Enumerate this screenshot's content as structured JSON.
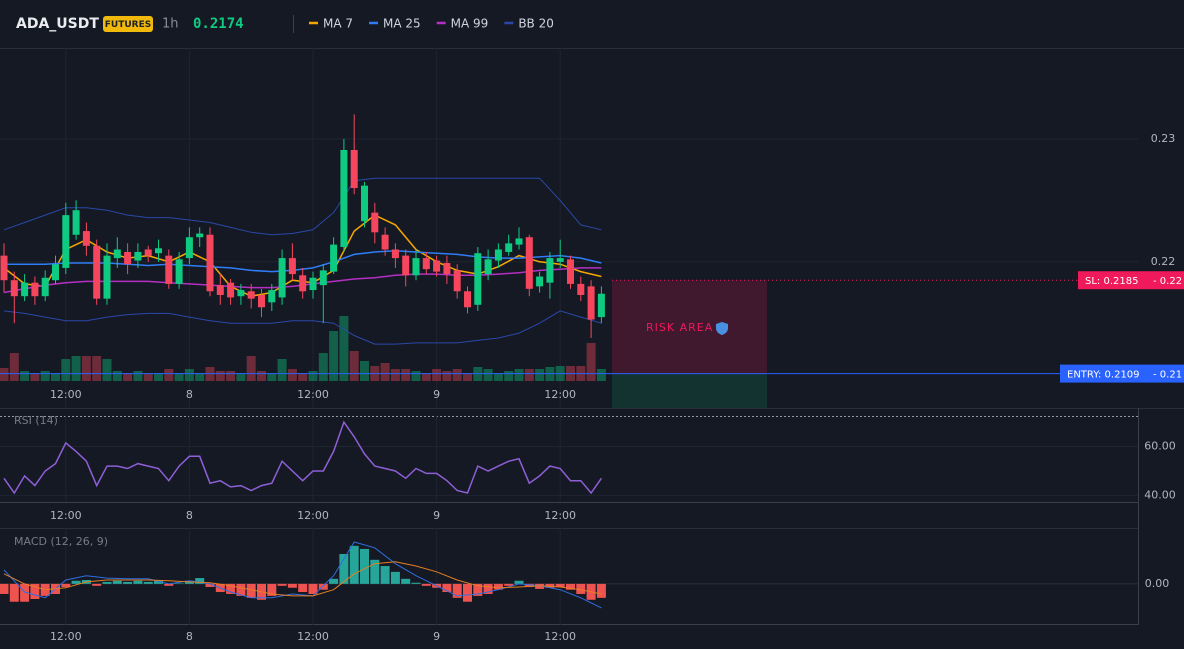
{
  "chart_data": [
    {
      "type": "candlestick",
      "symbol": "ADA_USDT",
      "badge": "FUTURES",
      "interval": "1h",
      "last_price": 0.2174,
      "up_color": "#0ecb81",
      "down_color": "#f6465d",
      "ylim": [
        0.2081,
        0.2374
      ],
      "yticks": [
        0.22,
        0.23
      ],
      "xticks": [
        {
          "value": 6,
          "label": "12:00"
        },
        {
          "value": 18,
          "label": "8"
        },
        {
          "value": 30,
          "label": "12:00"
        },
        {
          "value": 42,
          "label": "9"
        },
        {
          "value": 54,
          "label": "12:00"
        }
      ],
      "open": [
        0.2205,
        0.2185,
        0.2172,
        0.2183,
        0.2172,
        0.2185,
        0.2195,
        0.2222,
        0.2225,
        0.2213,
        0.217,
        0.2203,
        0.2208,
        0.2201,
        0.221,
        0.2207,
        0.2205,
        0.2182,
        0.2203,
        0.222,
        0.2222,
        0.2181,
        0.2183,
        0.2172,
        0.2176,
        0.2173,
        0.2167,
        0.2171,
        0.2203,
        0.2189,
        0.2177,
        0.2181,
        0.2192,
        0.2212,
        0.2291,
        0.2233,
        0.224,
        0.2222,
        0.221,
        0.2205,
        0.2189,
        0.2203,
        0.2201,
        0.2199,
        0.2193,
        0.2176,
        0.2165,
        0.219,
        0.2201,
        0.2208,
        0.2214,
        0.222,
        0.218,
        0.2183,
        0.22,
        0.2202,
        0.2182,
        0.218,
        0.2155
      ],
      "high": [
        0.2215,
        0.2192,
        0.219,
        0.2188,
        0.2193,
        0.2205,
        0.2248,
        0.225,
        0.2232,
        0.2218,
        0.2215,
        0.222,
        0.2215,
        0.2215,
        0.2213,
        0.2218,
        0.221,
        0.2208,
        0.2228,
        0.2228,
        0.2228,
        0.219,
        0.2186,
        0.2182,
        0.2182,
        0.2178,
        0.2182,
        0.221,
        0.2215,
        0.2195,
        0.2192,
        0.2198,
        0.222,
        0.23,
        0.232,
        0.2265,
        0.2248,
        0.2228,
        0.2215,
        0.221,
        0.221,
        0.2208,
        0.2205,
        0.2205,
        0.2198,
        0.218,
        0.2212,
        0.221,
        0.2215,
        0.2222,
        0.2228,
        0.2222,
        0.2192,
        0.2208,
        0.2218,
        0.2205,
        0.2188,
        0.2185,
        0.218
      ],
      "low": [
        0.2175,
        0.215,
        0.2168,
        0.2165,
        0.2168,
        0.2182,
        0.219,
        0.2218,
        0.2205,
        0.2165,
        0.2165,
        0.2195,
        0.219,
        0.2195,
        0.22,
        0.22,
        0.2178,
        0.2178,
        0.2198,
        0.2212,
        0.2172,
        0.2165,
        0.2165,
        0.2165,
        0.2162,
        0.2155,
        0.216,
        0.2165,
        0.2185,
        0.217,
        0.217,
        0.215,
        0.219,
        0.2208,
        0.2255,
        0.2228,
        0.2215,
        0.2205,
        0.2195,
        0.218,
        0.2185,
        0.219,
        0.2188,
        0.2182,
        0.217,
        0.2158,
        0.216,
        0.2185,
        0.2195,
        0.2205,
        0.221,
        0.2172,
        0.2175,
        0.217,
        0.2195,
        0.2178,
        0.2168,
        0.2138,
        0.215
      ],
      "close": [
        0.2185,
        0.2172,
        0.2183,
        0.2172,
        0.2187,
        0.2198,
        0.2238,
        0.2242,
        0.2213,
        0.217,
        0.2205,
        0.221,
        0.2198,
        0.2208,
        0.2205,
        0.2211,
        0.2182,
        0.2202,
        0.222,
        0.2223,
        0.2176,
        0.2173,
        0.2171,
        0.2177,
        0.217,
        0.2163,
        0.2177,
        0.2203,
        0.219,
        0.2176,
        0.2187,
        0.2193,
        0.2214,
        0.2291,
        0.226,
        0.2262,
        0.2224,
        0.221,
        0.2203,
        0.2189,
        0.2203,
        0.2194,
        0.2192,
        0.219,
        0.2176,
        0.2163,
        0.2207,
        0.2202,
        0.221,
        0.2215,
        0.2219,
        0.2178,
        0.2188,
        0.2203,
        0.2203,
        0.2182,
        0.2173,
        0.2153,
        0.2174
      ],
      "volume": [
        13000,
        28000,
        10000,
        8000,
        10000,
        8000,
        22000,
        25000,
        25000,
        25000,
        22000,
        10000,
        8000,
        10000,
        8000,
        8000,
        12000,
        8000,
        12000,
        8000,
        14000,
        10000,
        10000,
        8000,
        25000,
        10000,
        8000,
        22000,
        12000,
        8000,
        10000,
        28000,
        50000,
        65000,
        30000,
        20000,
        15000,
        18000,
        12000,
        12000,
        10000,
        8000,
        12000,
        10000,
        12000,
        8000,
        14000,
        12000,
        8000,
        10000,
        12000,
        12000,
        12000,
        14000,
        15000,
        15000,
        15000,
        38000,
        12000
      ],
      "line_x": [
        0,
        2,
        4,
        6,
        8,
        10,
        12,
        14,
        16,
        18,
        20,
        22,
        24,
        26,
        28,
        30,
        32,
        34,
        36,
        38,
        40,
        42,
        44,
        46,
        48,
        50,
        52,
        54,
        56,
        58
      ],
      "series": [
        {
          "name": "MA 7",
          "color": "#f7a600",
          "values": [
            0.2195,
            0.2182,
            0.218,
            0.221,
            0.2218,
            0.2208,
            0.2203,
            0.2205,
            0.22,
            0.2208,
            0.22,
            0.218,
            0.2172,
            0.2175,
            0.2185,
            0.2183,
            0.2193,
            0.2225,
            0.2238,
            0.223,
            0.221,
            0.22,
            0.2193,
            0.219,
            0.2196,
            0.2205,
            0.22,
            0.2198,
            0.2192,
            0.2188
          ]
        },
        {
          "name": "MA 25",
          "color": "#2f7df6",
          "values": [
            0.2198,
            0.2198,
            0.2198,
            0.2199,
            0.2199,
            0.2199,
            0.2198,
            0.2197,
            0.2198,
            0.2197,
            0.2196,
            0.2195,
            0.2193,
            0.2192,
            0.2193,
            0.2195,
            0.22,
            0.2206,
            0.2208,
            0.2209,
            0.2208,
            0.2207,
            0.2206,
            0.2204,
            0.2203,
            0.2203,
            0.2204,
            0.2205,
            0.2203,
            0.2199
          ]
        },
        {
          "name": "MA 99",
          "color": "#b62fc4",
          "values": [
            0.2175,
            0.2178,
            0.2181,
            0.2183,
            0.2184,
            0.2184,
            0.2184,
            0.2184,
            0.2183,
            0.2182,
            0.2181,
            0.218,
            0.2179,
            0.2179,
            0.218,
            0.2182,
            0.2184,
            0.2186,
            0.2187,
            0.2189,
            0.219,
            0.219,
            0.2189,
            0.2189,
            0.219,
            0.2191,
            0.2193,
            0.2194,
            0.2195,
            0.2195
          ]
        },
        {
          "name": "BB 20",
          "color": "#2a48a8",
          "upper": [
            0.2226,
            0.2232,
            0.2238,
            0.2244,
            0.2244,
            0.2242,
            0.2238,
            0.2236,
            0.2236,
            0.2234,
            0.2232,
            0.2228,
            0.2224,
            0.2222,
            0.2223,
            0.2226,
            0.224,
            0.2266,
            0.2268,
            0.2268,
            0.2268,
            0.2268,
            0.2268,
            0.2268,
            0.2268,
            0.2268,
            0.2268,
            0.225,
            0.223,
            0.2226
          ],
          "lower": [
            0.216,
            0.2158,
            0.2155,
            0.2152,
            0.2152,
            0.2155,
            0.2157,
            0.2158,
            0.2158,
            0.2155,
            0.2152,
            0.215,
            0.215,
            0.215,
            0.2152,
            0.2152,
            0.215,
            0.214,
            0.2133,
            0.2133,
            0.2134,
            0.2134,
            0.2134,
            0.2136,
            0.2138,
            0.2142,
            0.215,
            0.216,
            0.2155,
            0.215
          ]
        }
      ],
      "stop_loss": {
        "value": 0.2185,
        "label": "SL: 0.2185",
        "scale_label": "- 0.22",
        "color": "#f0195a"
      },
      "entry": {
        "value": 0.2109,
        "label": "ENTRY: 0.2109",
        "scale_label": "- 0.21",
        "color": "#2962ff"
      },
      "zone_label": "RISK AREA"
    },
    {
      "type": "line",
      "title": "RSI (14)",
      "color": "#8e5fd6",
      "ylim": [
        37.3,
        72.5
      ],
      "yticks": [
        {
          "value": 40,
          "label": "40.00"
        },
        {
          "value": 60,
          "label": "60.00"
        }
      ],
      "values": [
        47,
        41,
        48,
        44,
        50,
        53,
        61.5,
        58,
        54,
        44,
        52,
        52,
        51,
        53,
        52,
        51,
        46,
        52,
        56,
        56,
        45,
        46,
        43.5,
        44,
        42,
        44,
        45,
        54,
        50,
        46,
        50,
        50,
        58,
        70,
        64,
        57,
        52,
        51,
        50,
        47,
        51,
        49,
        49,
        46,
        42,
        41,
        52,
        50,
        52,
        54,
        55,
        45,
        48,
        52,
        51,
        46,
        46,
        41,
        47
      ]
    },
    {
      "type": "macd",
      "title": "MACD (12, 26, 9)",
      "macd_color": "#2f6fe0",
      "signal_color": "#e67e22",
      "up_color": "#26a69a",
      "down_color": "#ef5350",
      "ylim": [
        -0.00106,
        0.00144
      ],
      "yticks": [
        {
          "value": 0,
          "label": "0.00"
        }
      ],
      "histogram": [
        -0.00026,
        -0.00046,
        -0.00046,
        -0.00039,
        -0.00031,
        -0.00026,
        -8e-05,
        8e-05,
        0.0001,
        -5e-05,
        5e-05,
        8e-05,
        5e-05,
        8e-05,
        5e-05,
        8e-05,
        -5e-05,
        1e-05,
        8e-05,
        0.00015,
        -8e-05,
        -0.00021,
        -0.00026,
        -0.00031,
        -0.00036,
        -0.00041,
        -0.00031,
        -5e-05,
        -0.0001,
        -0.00021,
        -0.00026,
        -0.00015,
        0.00013,
        0.00077,
        0.00098,
        0.0009,
        0.00062,
        0.00046,
        0.00031,
        0.00013,
        3e-05,
        -5e-05,
        -0.0001,
        -0.00021,
        -0.00036,
        -0.00046,
        -0.00031,
        -0.00026,
        -0.00015,
        -5e-05,
        8e-05,
        -8e-05,
        -0.00013,
        -0.0001,
        -8e-05,
        -0.00015,
        -0.00026,
        -0.00041,
        -0.00036
      ],
      "macd": [
        0.00036,
        -0.00021,
        -0.00036,
        0.0001,
        0.00021,
        0.00015,
        0.00013,
        0.00013,
        0,
        8e-05,
        0,
        -0.00021,
        -0.00036,
        -0.00036,
        -0.00026,
        -0.00031,
        0.00021,
        0.00108,
        0.00093,
        0.00052,
        0.00021,
        -5e-05,
        -0.00031,
        -0.00026,
        -0.00015,
        0,
        -5e-05,
        -0.00015,
        -0.00036,
        -0.00062
      ],
      "signal": [
        0.00026,
        0,
        -0.00015,
        -0.0001,
        5e-05,
        0.0001,
        0.0001,
        0.0001,
        8e-05,
        5e-05,
        3e-05,
        -5e-05,
        -0.00015,
        -0.00026,
        -0.00031,
        -0.00031,
        -0.00015,
        0.00026,
        0.00052,
        0.00057,
        0.00046,
        0.00031,
        0.0001,
        -5e-05,
        -0.0001,
        -8e-05,
        -5e-05,
        -8e-05,
        -0.00015,
        -0.00026
      ]
    }
  ]
}
